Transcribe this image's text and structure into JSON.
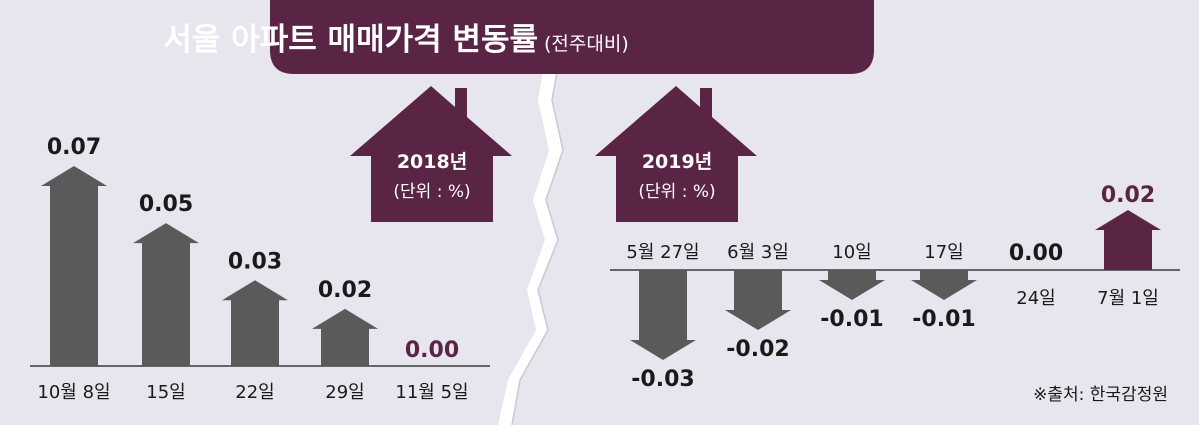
{
  "chart_data": [
    {
      "type": "bar",
      "title": "서울 아파트 매매가격 변동률",
      "subtitle": "(전주대비)",
      "year_label": "2018년",
      "unit_label": "(단위 : %)",
      "categories": [
        "10월 8일",
        "15일",
        "22일",
        "29일",
        "11월 5일"
      ],
      "values": [
        0.07,
        0.05,
        0.03,
        0.02,
        0.0
      ],
      "value_labels": [
        "0.07",
        "0.05",
        "0.03",
        "0.02",
        "0.00"
      ],
      "ylim": [
        0,
        0.07
      ]
    },
    {
      "type": "bar",
      "year_label": "2019년",
      "unit_label": "(단위 : %)",
      "categories": [
        "5월 27일",
        "6월 3일",
        "10일",
        "17일",
        "24일",
        "7월 1일"
      ],
      "values": [
        -0.03,
        -0.02,
        -0.01,
        -0.01,
        0.0,
        0.02
      ],
      "value_labels": [
        "-0.03",
        "-0.02",
        "-0.01",
        "-0.01",
        "0.00",
        "0.02"
      ],
      "ylim": [
        -0.03,
        0.02
      ]
    }
  ],
  "source": "※출처: 한국감정원",
  "colors": {
    "banner": "#5a2545",
    "accent": "#5a2545",
    "bar": "#5a5a5a",
    "panel_bg": "#e7e6ef",
    "text": "#1a1a1a"
  }
}
